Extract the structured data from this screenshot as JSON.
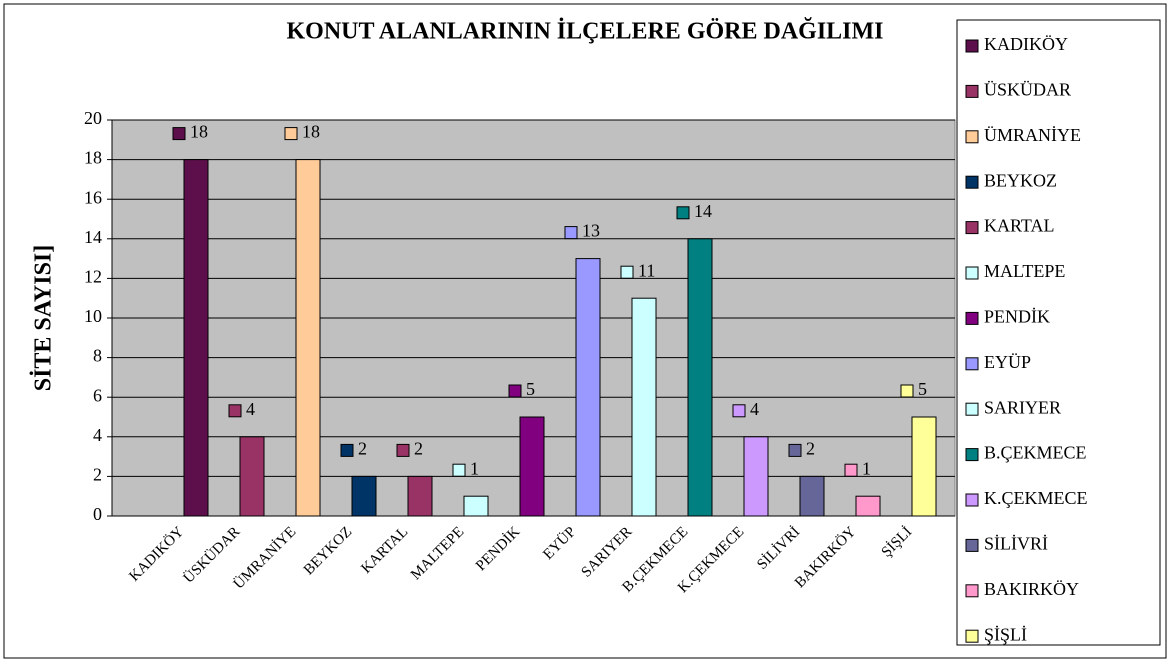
{
  "chart_data": {
    "type": "bar",
    "title": "KONUT ALANLARININ İLÇELERE GÖRE DAĞILIMI",
    "ylabel": "SİTE SAYISI]",
    "categories": [
      "KADIKÖY",
      "ÜSKÜDAR",
      "ÜMRANİYE",
      "BEYKOZ",
      "KARTAL",
      "MALTEPE",
      "PENDİK",
      "EYÜP",
      "SARIYER",
      "B.ÇEKMECE",
      "K.ÇEKMECE",
      "SİLİVRİ",
      "BAKIRKÖY",
      "ŞİŞLİ"
    ],
    "values": [
      18,
      4,
      18,
      2,
      2,
      1,
      5,
      13,
      11,
      14,
      4,
      2,
      1,
      5
    ],
    "colors": [
      "#5c0f4a",
      "#993366",
      "#ffcc99",
      "#003366",
      "#993366",
      "#ccffff",
      "#800080",
      "#9999ff",
      "#ccffff",
      "#008080",
      "#cc99ff",
      "#666699",
      "#ff99cc",
      "#ffff99"
    ],
    "ylim": [
      0,
      20
    ],
    "yticks": [
      0,
      2,
      4,
      6,
      8,
      10,
      12,
      14,
      16,
      18,
      20
    ],
    "grid": true,
    "legend": "right"
  }
}
